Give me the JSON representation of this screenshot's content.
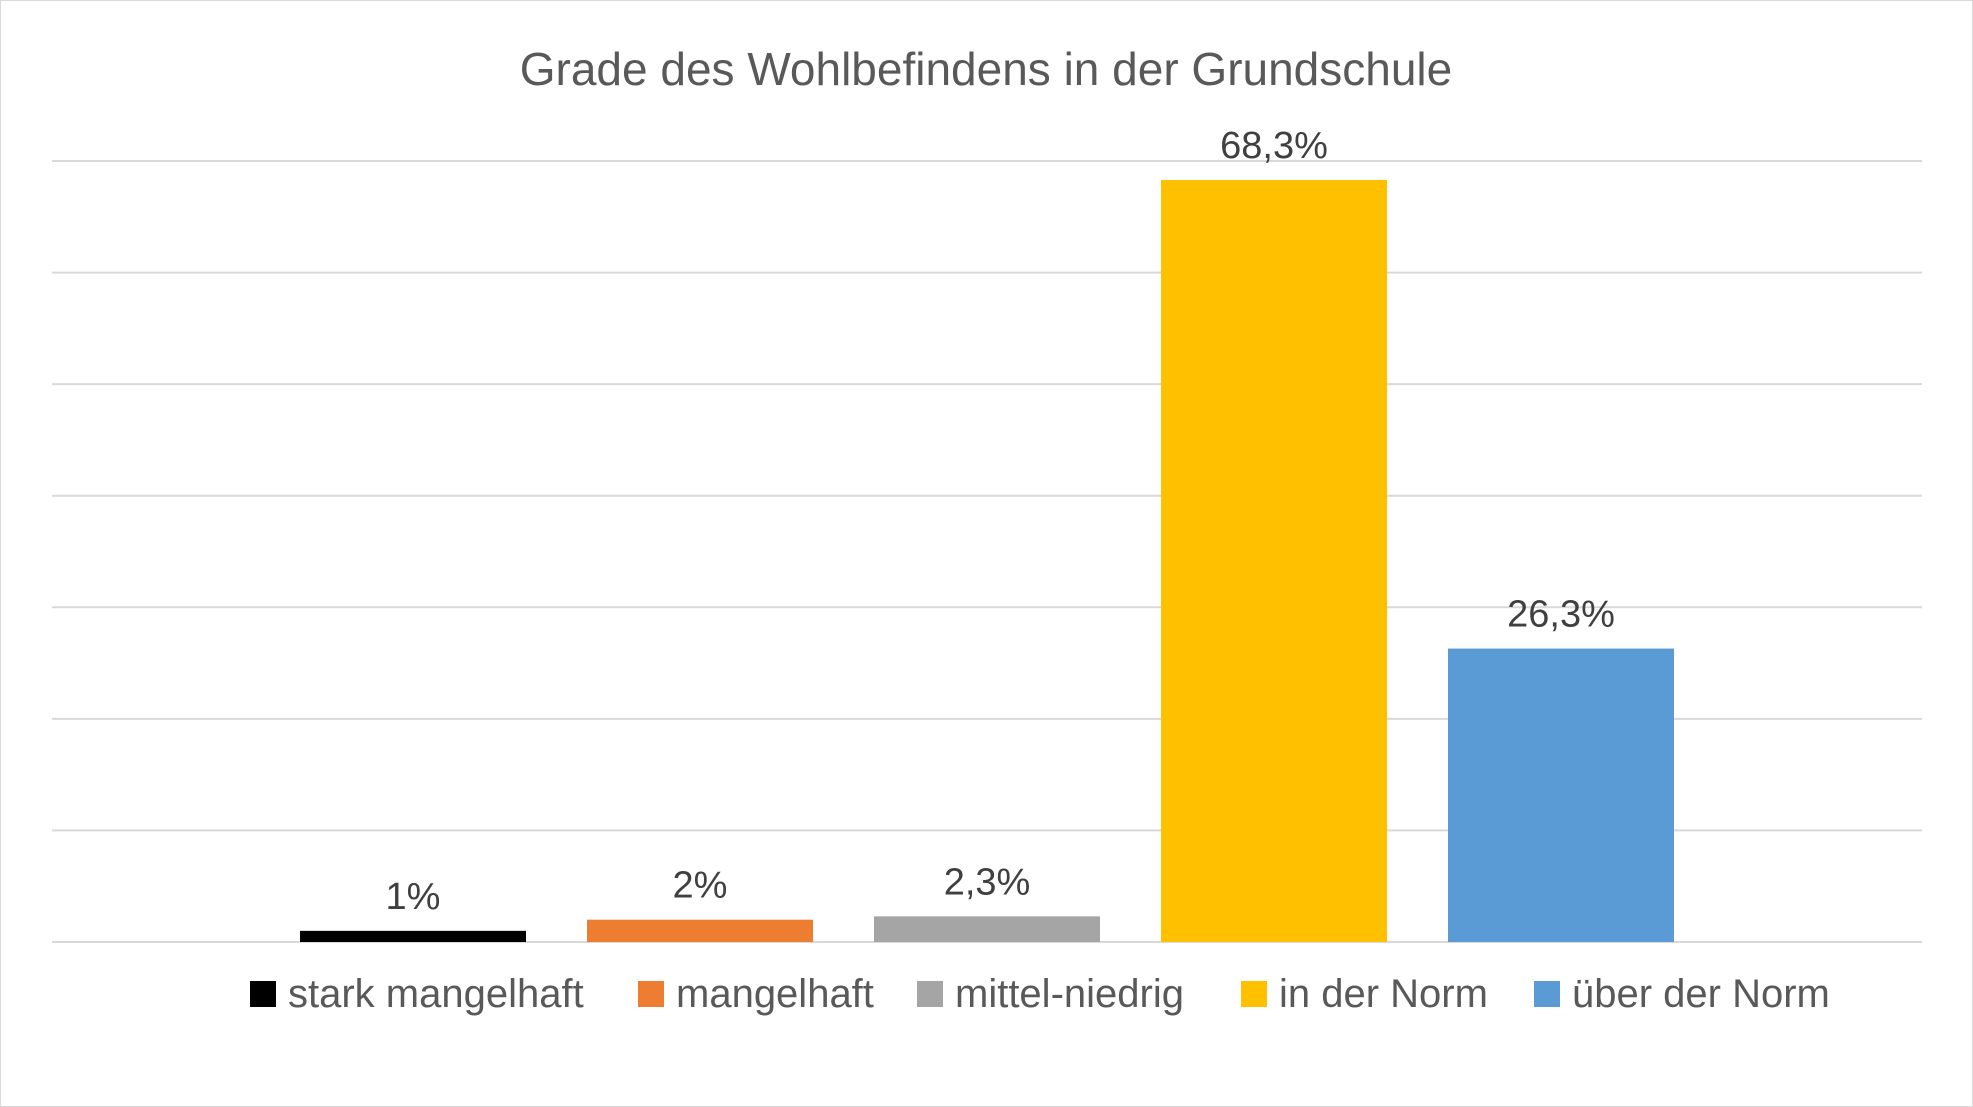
{
  "chart_data": {
    "type": "bar",
    "title": "Grade des Wohlbefindens in der Grundschule",
    "xlabel": "",
    "ylabel": "",
    "ylim": [
      0,
      70
    ],
    "grid": true,
    "legend_position": "bottom",
    "categories": [
      "stark mangelhaft",
      "mangelhaft",
      "mittel-niedrig",
      "in der Norm",
      "über der Norm"
    ],
    "values": [
      1,
      2,
      2.3,
      68.3,
      26.3
    ],
    "data_labels": [
      "1%",
      "2%",
      "2,3%",
      "68,3%",
      "26,3%"
    ],
    "colors": [
      "#000000",
      "#ed7d31",
      "#a5a5a5",
      "#ffc000",
      "#5b9bd5"
    ]
  }
}
